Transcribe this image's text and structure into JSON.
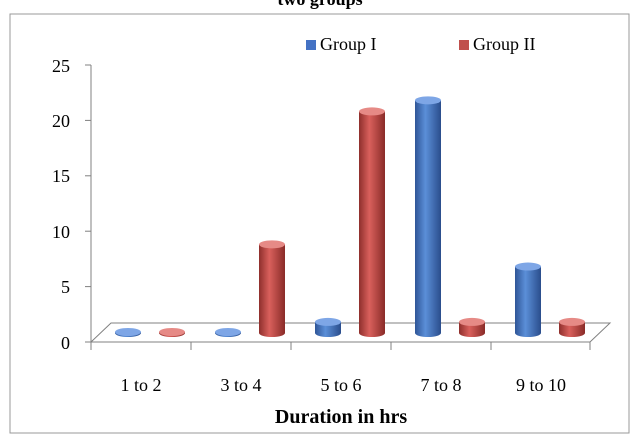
{
  "chart_data": {
    "type": "bar",
    "title": "two groups",
    "xlabel": "Duration in hrs",
    "ylabel": "",
    "categories": [
      "1 to 2",
      "3 to 4",
      "5 to 6",
      "7 to 8",
      "9 to 10"
    ],
    "series": [
      {
        "name": "Group I",
        "values": [
          0,
          0,
          1,
          21,
          6
        ],
        "color": "#4472C4"
      },
      {
        "name": "Group II",
        "values": [
          0,
          8,
          20,
          1,
          1
        ],
        "color": "#C0504D"
      }
    ],
    "ylim": [
      0,
      25
    ],
    "yticks": [
      "0",
      "5",
      "10",
      "15",
      "20",
      "25"
    ],
    "legend_position": "top-right",
    "grid": false,
    "style": "3d-cylinder"
  }
}
